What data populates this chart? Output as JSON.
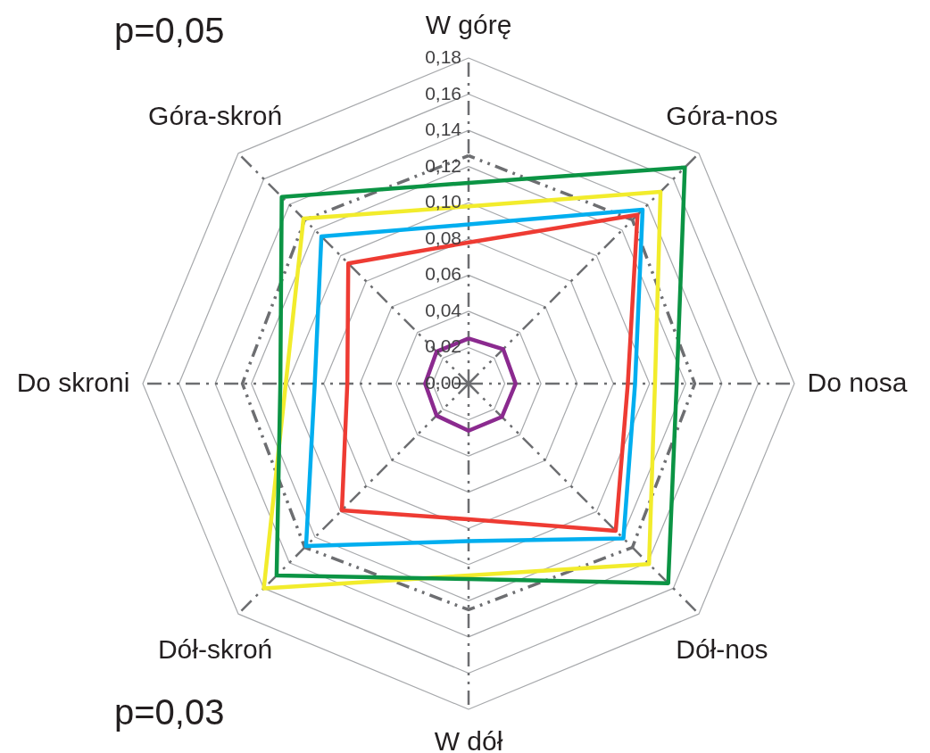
{
  "chart_data": {
    "type": "radar",
    "categories": [
      "W górę",
      "Góra-nos",
      "Do nosa",
      "Dół-nos",
      "W dół",
      "Dół-skroń",
      "Do skroni",
      "Góra-skroń"
    ],
    "series": [
      {
        "color": "#6d6e71",
        "line_style": "dashed",
        "values": [
          0.126,
          0.128,
          0.125,
          0.128,
          0.125,
          0.128,
          0.125,
          0.128
        ]
      },
      {
        "color": "#ee3b33",
        "values": [
          0.078,
          0.132,
          0.088,
          0.115,
          0.075,
          0.099,
          0.067,
          0.094
        ]
      },
      {
        "color": "#00aeef",
        "values": [
          0.088,
          0.136,
          0.092,
          0.121,
          0.087,
          0.127,
          0.085,
          0.115
        ]
      },
      {
        "color": "#f2ec2c",
        "values": [
          0.098,
          0.15,
          0.103,
          0.141,
          0.106,
          0.16,
          0.101,
          0.129
        ]
      },
      {
        "color": "#0b9444",
        "values": [
          0.111,
          0.169,
          0.115,
          0.156,
          0.108,
          0.15,
          0.104,
          0.146
        ]
      },
      {
        "color": "#8b2a8f",
        "values": [
          0.025,
          0.027,
          0.026,
          0.026,
          0.026,
          0.025,
          0.024,
          0.025
        ]
      }
    ],
    "ylim": [
      0,
      0.18
    ],
    "yticks": [
      {
        "value": 0,
        "label": "0,00"
      },
      {
        "value": 0.02,
        "label": "0,02"
      },
      {
        "value": 0.04,
        "label": "0,04"
      },
      {
        "value": 0.06,
        "label": "0,06"
      },
      {
        "value": 0.08,
        "label": "0,08"
      },
      {
        "value": 0.1,
        "label": "0,10"
      },
      {
        "value": 0.12,
        "label": "0,12"
      },
      {
        "value": 0.14,
        "label": "0,14"
      },
      {
        "value": 0.16,
        "label": "0,16"
      },
      {
        "value": 0.18,
        "label": "0,18"
      }
    ],
    "grid": true,
    "annotations": [
      "p=0,05",
      "p=0,03"
    ]
  }
}
